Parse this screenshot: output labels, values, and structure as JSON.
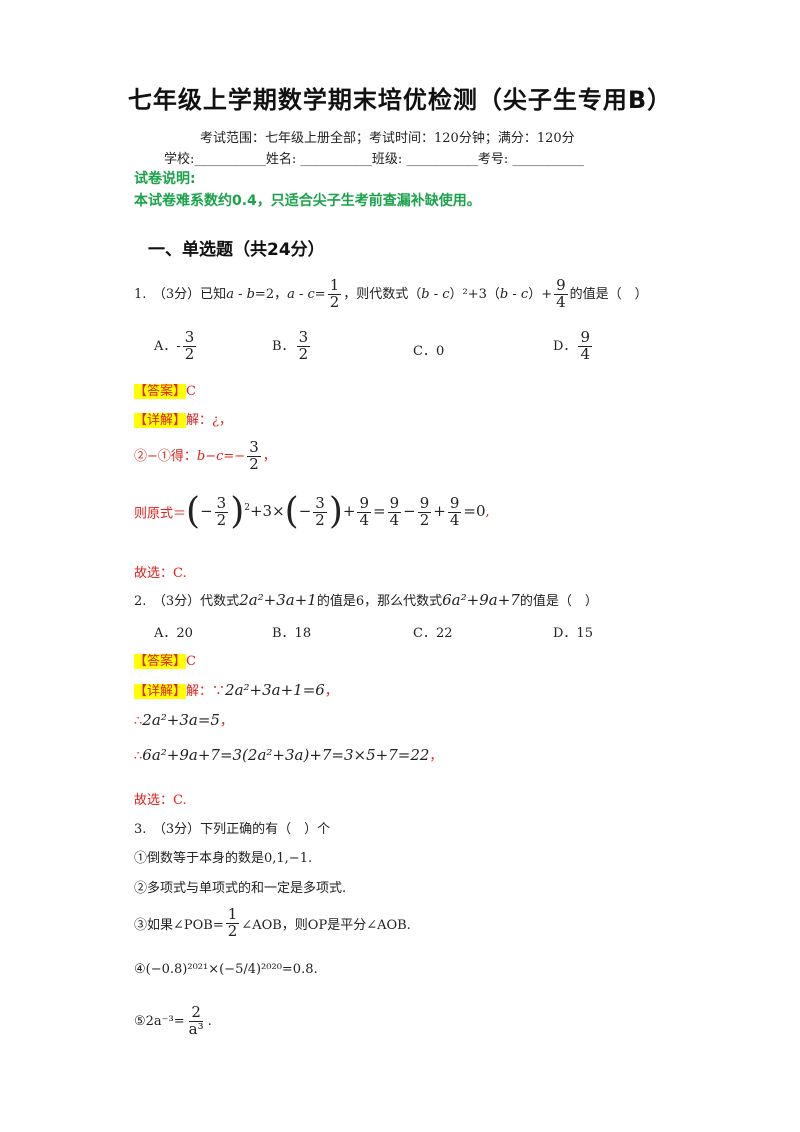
{
  "title": "七年级上学期数学期末培优检测（尖子生专用B）",
  "exam_info": "考试范围：七年级上册全部；考试时间：120分钟；满分：120分",
  "fields": "学校:___________姓名: ___________班级: ___________考号: ___________",
  "notes_title": "试卷说明:",
  "notes_text": "本试卷难系数约0.4，只适合尖子生考前查漏补缺使用。",
  "section1": "一、单选题（共24分）",
  "answer_tag": "【答案】",
  "detail_tag": "【详解】",
  "q1": {
    "stem_a": "1.　（3分）已知",
    "stem_b": "a - b",
    "stem_c": "=2，",
    "stem_d": "a - c",
    "stem_e": "=",
    "stem_f": "，则代数式（",
    "stem_g": "b - c",
    "stem_h": "）²+3（",
    "stem_i": "b - c",
    "stem_j": "）+",
    "stem_k": "的值是（　）",
    "frac_1_2": [
      "1",
      "2"
    ],
    "frac_9_4": [
      "9",
      "4"
    ],
    "opt_a": "A．-",
    "opt_a_frac": [
      "3",
      "2"
    ],
    "opt_b": "B．",
    "opt_b_frac": [
      "3",
      "2"
    ],
    "opt_c": "C．0",
    "opt_d": "D．",
    "opt_d_frac": [
      "9",
      "4"
    ],
    "answer": "C",
    "detail_1": "解：¿，",
    "detail_2a": "②−①得：",
    "detail_2b": "b−c",
    "detail_2c": "=−",
    "detail_2frac": [
      "3",
      "2"
    ],
    "detail_2d": "，",
    "detail_3label": "则原式＝",
    "conclusion": "故选：C."
  },
  "q2": {
    "stem": "2.　（3分）代数式",
    "expr1": "2a²+3a+1",
    "mid": "的值是6，那么代数式",
    "expr2": "6a²+9a+7",
    "end": "的值是（　）",
    "opt_a": "A．20",
    "opt_b": "B．18",
    "opt_c": "C．22",
    "opt_d": "D．15",
    "answer": "C",
    "detail_1a": "解：",
    "detail_1b": "∵",
    "detail_1c": "2a²+3a+1=6",
    "detail_1d": "，",
    "detail_2a": "∴",
    "detail_2b": "2a²+3a=5",
    "detail_2c": "，",
    "detail_3a": "∴",
    "detail_3b": "6a²+9a+7=3(2a²+3a)+7=3×5+7=22",
    "detail_3c": "，",
    "conclusion": "故选：C."
  },
  "q3": {
    "stem": "3.　（3分）下列正确的有（　）个",
    "item1": "①倒数等于本身的数是0,1,−1.",
    "item2": "②多项式与单项式的和一定是多项式.",
    "item3a": "③如果∠POB=",
    "item3frac": [
      "1",
      "2"
    ],
    "item3b": "∠AOB，则OP是平分∠AOB.",
    "item4": "④(−0.8)²⁰²¹×(−5/4)²⁰²⁰=0.8.",
    "item5a": "⑤2a⁻³=",
    "item5frac": [
      "2",
      "a³"
    ],
    "item5b": "."
  }
}
